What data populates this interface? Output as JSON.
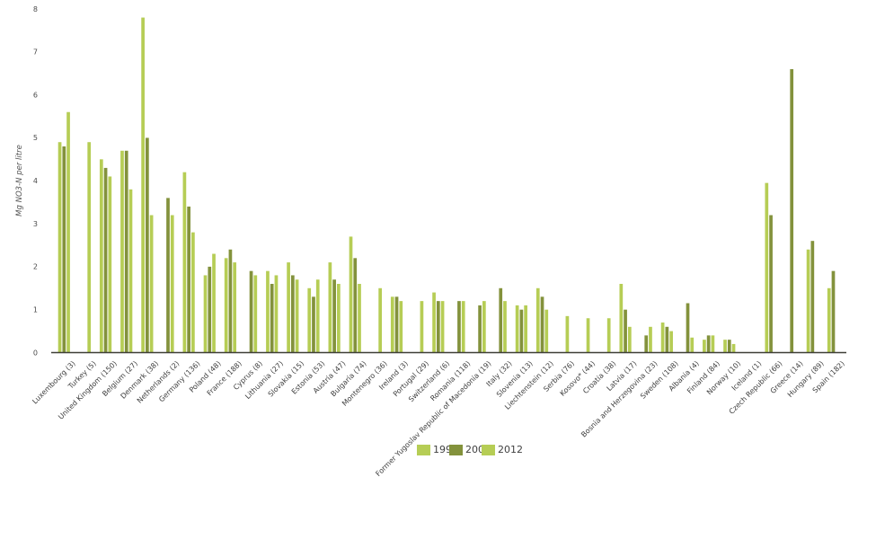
{
  "chart_data": {
    "type": "bar",
    "title": "",
    "xlabel": "",
    "ylabel": "Mg NO3-N per litre",
    "ylim": [
      0,
      8
    ],
    "yticks": [
      0,
      1,
      2,
      3,
      4,
      5,
      6,
      7,
      8
    ],
    "grid": false,
    "legend_position": "bottom-center",
    "bar_colors": {
      "light_green": "#b6cd55",
      "dark_olive": "#83923c"
    },
    "axis_line_color": "#3f3f37",
    "categories": [
      "Luxembourg (3)",
      "Turkey (5)",
      "United Kingdom (150)",
      "Belgium (27)",
      "Denmark (38)",
      "Netherlands (2)",
      "Germany (136)",
      "Poland (48)",
      "France (188)",
      "Cyprus (8)",
      "Lithuania (27)",
      "Slovakia (15)",
      "Estonia (53)",
      "Austria (47)",
      "Bulgaria (74)",
      "Montenegro (36)",
      "Ireland (3)",
      "Portugal (29)",
      "Switzerland (6)",
      "Romania (118)",
      "Former Yugoslav Republic of Macedonia (19)",
      "Italy (32)",
      "Slovenia (13)",
      "Liechtenstein (12)",
      "Serbia (76)",
      "Kosovo* (44)",
      "Croatia (38)",
      "Latvia (17)",
      "Bosnia and Herzegovina (23)",
      "Sweden (108)",
      "Albania (4)",
      "Finland (84)",
      "Norway (10)",
      "Iceland (1)",
      "Czech Republic (66)",
      "Greece (14)",
      "Hungary (89)",
      "Spain (182)"
    ],
    "series": [
      {
        "name": "1992",
        "color": "#b6cd55",
        "values": [
          4.9,
          null,
          4.5,
          4.7,
          7.8,
          null,
          4.2,
          1.8,
          2.2,
          null,
          1.9,
          2.1,
          1.5,
          2.1,
          2.7,
          null,
          1.3,
          null,
          1.4,
          null,
          null,
          null,
          1.1,
          1.5,
          null,
          null,
          null,
          1.6,
          null,
          0.7,
          null,
          0.3,
          0.3,
          null,
          3.95,
          null,
          2.4,
          1.5
        ]
      },
      {
        "name": "2002",
        "color": "#83923c",
        "values": [
          4.8,
          null,
          4.3,
          4.7,
          5.0,
          3.6,
          3.4,
          2.0,
          2.4,
          1.9,
          1.6,
          1.8,
          1.3,
          1.7,
          2.2,
          null,
          1.3,
          null,
          1.2,
          1.2,
          1.1,
          1.5,
          1.0,
          1.3,
          null,
          null,
          null,
          1.0,
          0.4,
          0.6,
          1.15,
          0.4,
          0.3,
          null,
          3.2,
          6.6,
          2.6,
          1.9
        ]
      },
      {
        "name": "2012",
        "color": "#b6cd55",
        "values": [
          5.6,
          4.9,
          4.1,
          3.8,
          3.2,
          3.2,
          2.8,
          2.3,
          2.1,
          1.8,
          1.8,
          1.7,
          1.7,
          1.6,
          1.6,
          1.5,
          1.2,
          1.2,
          1.2,
          1.2,
          1.2,
          1.2,
          1.1,
          1.0,
          0.85,
          0.8,
          0.8,
          0.6,
          0.6,
          0.5,
          0.35,
          0.4,
          0.2,
          null,
          null,
          null,
          null,
          null
        ]
      }
    ]
  }
}
